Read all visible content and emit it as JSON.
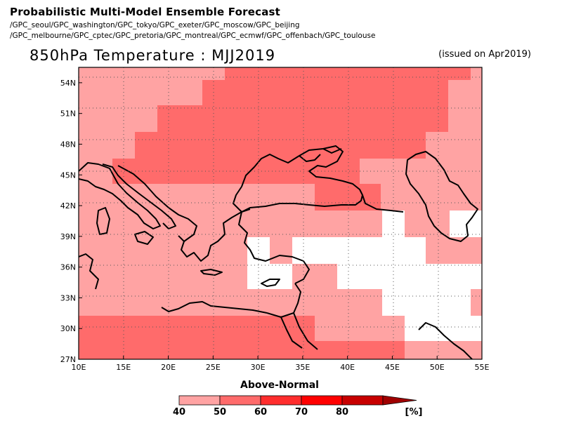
{
  "header": {
    "title": "Probabilistic Multi-Model Ensemble Forecast",
    "models_line1": "/GPC_seoul/GPC_washington/GPC_tokyo/GPC_exeter/GPC_moscow/GPC_beijing",
    "models_line2": "/GPC_melbourne/GPC_cptec/GPC_pretoria/GPC_montreal/GPC_ecmwf/GPC_offenbach/GPC_toulouse"
  },
  "map": {
    "title": "850hPa Temperature : MJJ2019",
    "issued": "(issued on Apr2019)",
    "lon_range": [
      10,
      55
    ],
    "lat_range": [
      27,
      55.5
    ],
    "x_ticks": [
      "10E",
      "15E",
      "20E",
      "25E",
      "30E",
      "35E",
      "40E",
      "45E",
      "50E",
      "55E"
    ],
    "y_ticks": [
      "27N",
      "30N",
      "33N",
      "36N",
      "39N",
      "42N",
      "45N",
      "48N",
      "51N",
      "54N"
    ],
    "grid": "dotted",
    "cell_size_deg": 2.5
  },
  "colorbar": {
    "label": "Above-Normal",
    "unit": "[%]",
    "ticks": [
      "40",
      "50",
      "60",
      "70",
      "80"
    ],
    "colors": [
      "#ffa3a3",
      "#ff6b6b",
      "#ff2d2d",
      "#ff0000",
      "#c80000"
    ]
  },
  "colors": {
    "prob_40_50": "#ffa3a3",
    "prob_50_60": "#ff6b6b",
    "no_signal": "#ffffff",
    "coastline": "#000000"
  }
}
